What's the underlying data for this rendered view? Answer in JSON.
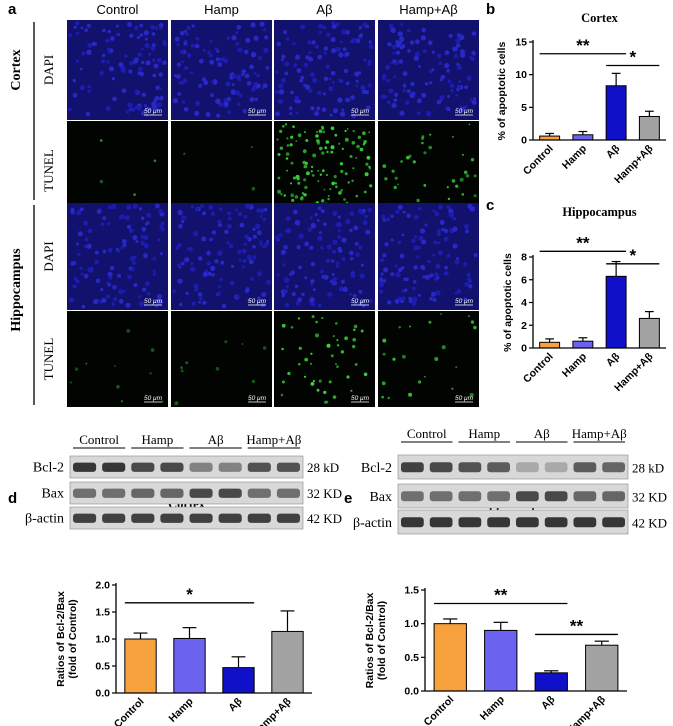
{
  "panels": {
    "a": {
      "letter": "a",
      "groups": [
        "Control",
        "Hamp",
        "Aβ",
        "Hamp+Aβ"
      ],
      "regions": [
        "Cortex",
        "Hippocampus"
      ],
      "stains": [
        "DAPI",
        "TUNEL"
      ],
      "scale_bar": "50 μm"
    },
    "d_blot": {
      "letter": "d",
      "title": "Cortex",
      "groups": [
        "Control",
        "Hamp",
        "Aβ",
        "Hamp+Aβ"
      ],
      "markers": [
        "Bcl-2",
        "Bax",
        "β-actin"
      ],
      "sizes": [
        "28 kD",
        "32 KD",
        "42 KD"
      ]
    },
    "e_blot": {
      "letter": "e",
      "title": "Hippocampus",
      "groups": [
        "Control",
        "Hamp",
        "Aβ",
        "Hamp+Aβ"
      ],
      "markers": [
        "Bcl-2",
        "Bax",
        "β-actin"
      ],
      "sizes": [
        "28 kD",
        "32 KD",
        "42 KD"
      ]
    }
  },
  "colors": [
    "#f7a23c",
    "#6b63f0",
    "#1010c8",
    "#a3a3a3"
  ],
  "chart_data": [
    {
      "id": "b",
      "letter": "b",
      "type": "bar",
      "title": "Cortex",
      "categories": [
        "Control",
        "Hamp",
        "Aβ",
        "Hamp+Aβ"
      ],
      "values": [
        0.6,
        0.8,
        8.3,
        3.6
      ],
      "errors": [
        0.4,
        0.5,
        1.9,
        0.8
      ],
      "ylabel": "% of apoptotic cells",
      "xlabel": "",
      "ylim": [
        0,
        15
      ],
      "yticks": [
        0,
        5,
        10,
        15
      ],
      "tick_labels": [
        "0",
        "5",
        "10",
        "15"
      ],
      "significance": [
        {
          "from": 0,
          "to": 2,
          "label": "**",
          "y": 13.2
        },
        {
          "from": 2,
          "to": 3,
          "label": "*",
          "y": 11.4
        }
      ]
    },
    {
      "id": "c",
      "letter": "c",
      "type": "bar",
      "title": "Hippocampus",
      "categories": [
        "Control",
        "Hamp",
        "Aβ",
        "Hamp+Aβ"
      ],
      "values": [
        0.5,
        0.6,
        6.3,
        2.6
      ],
      "errors": [
        0.3,
        0.3,
        1.3,
        0.6
      ],
      "ylabel": "% of apoptotic cells",
      "xlabel": "",
      "ylim": [
        0,
        8
      ],
      "yticks": [
        0,
        2,
        4,
        6,
        8
      ],
      "tick_labels": [
        "0",
        "2",
        "4",
        "6",
        "8"
      ],
      "significance": [
        {
          "from": 0,
          "to": 2,
          "label": "**",
          "y": 8.5
        },
        {
          "from": 2,
          "to": 3,
          "label": "*",
          "y": 7.4
        }
      ]
    },
    {
      "id": "d",
      "type": "bar",
      "title": "",
      "categories": [
        "Control",
        "Hamp",
        "Aβ",
        "Hamp+Aβ"
      ],
      "values": [
        1.0,
        1.01,
        0.47,
        1.14
      ],
      "errors": [
        0.11,
        0.2,
        0.2,
        0.38
      ],
      "ylabel": "Ratios of Bcl-2/Bax",
      "ylabel2": "(fold of Control)",
      "xlabel": "",
      "ylim": [
        0,
        2.0
      ],
      "yticks": [
        0,
        0.5,
        1.0,
        1.5,
        2.0
      ],
      "tick_labels": [
        "0.0",
        "0.5",
        "1.0",
        "1.5",
        "2.0"
      ],
      "significance": [
        {
          "from": 0,
          "to": 2,
          "label": "*",
          "y": 1.67
        }
      ]
    },
    {
      "id": "e",
      "type": "bar",
      "title": "",
      "categories": [
        "Control",
        "Hamp",
        "Aβ",
        "Hamp+Aβ"
      ],
      "values": [
        1.0,
        0.9,
        0.27,
        0.68
      ],
      "errors": [
        0.07,
        0.12,
        0.03,
        0.06
      ],
      "ylabel": "Ratios of Bcl-2/Bax",
      "ylabel2": "(fold of Control)",
      "xlabel": "",
      "ylim": [
        0,
        1.5
      ],
      "yticks": [
        0,
        0.5,
        1.0,
        1.5
      ],
      "tick_labels": [
        "0.0",
        "0.5",
        "1.0",
        "1.5"
      ],
      "significance": [
        {
          "from": 0,
          "to": 2,
          "label": "**",
          "y": 1.3
        },
        {
          "from": 2,
          "to": 3,
          "label": "**",
          "y": 0.84
        }
      ]
    }
  ]
}
